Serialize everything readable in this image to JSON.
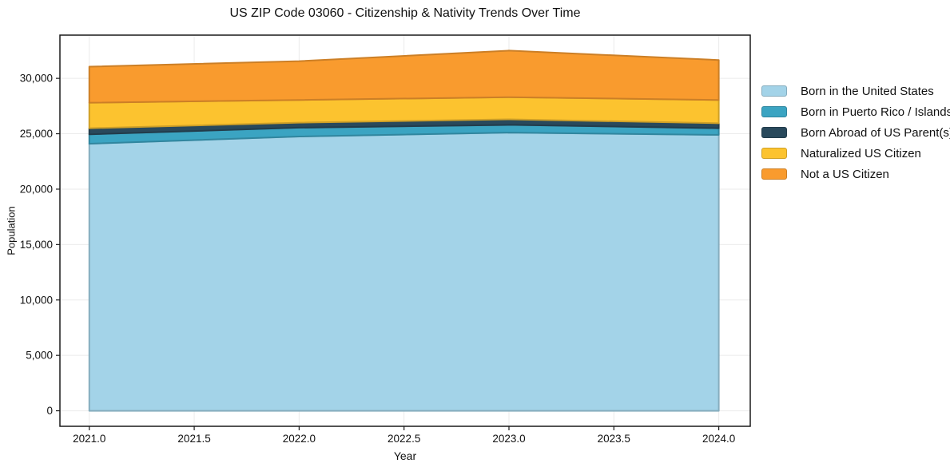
{
  "chart_data": {
    "type": "area",
    "stacked": true,
    "title": "US ZIP Code 03060 - Citizenship & Nativity Trends Over Time",
    "xlabel": "Year",
    "ylabel": "Population",
    "x": [
      2021,
      2022,
      2023,
      2024
    ],
    "series": [
      {
        "name": "Born in the United States",
        "color": "#a3d3e8",
        "values": [
          24100,
          24750,
          25100,
          24900
        ]
      },
      {
        "name": "Born in Puerto Rico / Islands",
        "color": "#3ba4c2",
        "values": [
          850,
          800,
          700,
          600
        ]
      },
      {
        "name": "Born Abroad of US Parent(s)",
        "color": "#29495c",
        "values": [
          550,
          450,
          500,
          450
        ]
      },
      {
        "name": "Naturalized US Citizen",
        "color": "#fcc32f",
        "values": [
          2300,
          2050,
          2000,
          2100
        ]
      },
      {
        "name": "Not a US Citizen",
        "color": "#f99b2e",
        "values": [
          3250,
          3500,
          4200,
          3600
        ]
      }
    ],
    "totals": [
      31050,
      31550,
      32500,
      31650
    ],
    "xlim": [
      2020.86,
      2024.15
    ],
    "ylim": [
      -1400,
      33900
    ],
    "x_ticks": [
      {
        "v": 2021.0,
        "label": "2021.0"
      },
      {
        "v": 2021.5,
        "label": "2021.5"
      },
      {
        "v": 2022.0,
        "label": "2022.0"
      },
      {
        "v": 2022.5,
        "label": "2022.5"
      },
      {
        "v": 2023.0,
        "label": "2023.0"
      },
      {
        "v": 2023.5,
        "label": "2023.5"
      },
      {
        "v": 2024.0,
        "label": "2024.0"
      }
    ],
    "y_ticks": [
      {
        "v": 0,
        "label": "0"
      },
      {
        "v": 5000,
        "label": "5,000"
      },
      {
        "v": 10000,
        "label": "10,000"
      },
      {
        "v": 15000,
        "label": "15,000"
      },
      {
        "v": 20000,
        "label": "20,000"
      },
      {
        "v": 25000,
        "label": "25,000"
      },
      {
        "v": 30000,
        "label": "30,000"
      }
    ],
    "grid": true,
    "legend_position": "right",
    "colors": {
      "frame": "#1a1a1a",
      "grid": "#ebebeb",
      "tick": "#1a1a1a",
      "text": "#111111",
      "background": "#ffffff"
    }
  }
}
